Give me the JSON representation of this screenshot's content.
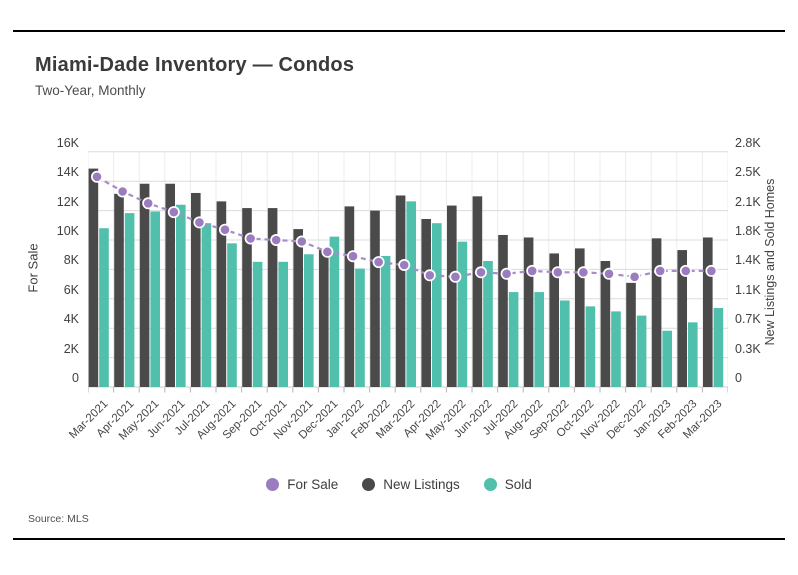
{
  "card": {
    "title": "Miami-Dade Inventory — Condos",
    "subtitle": "Two-Year, Monthly",
    "source": "Source: MLS"
  },
  "chart_data": {
    "type": "bar+line combo",
    "categories": [
      "Mar-2021",
      "Apr-2021",
      "May-2021",
      "Jun-2021",
      "Jul-2021",
      "Aug-2021",
      "Sep-2021",
      "Oct-2021",
      "Nov-2021",
      "Dec-2021",
      "Jan-2022",
      "Feb-2022",
      "Mar-2022",
      "Apr-2022",
      "May-2022",
      "Jun-2022",
      "Jul-2022",
      "Aug-2022",
      "Sep-2022",
      "Oct-2022",
      "Nov-2022",
      "Dec-2022",
      "Jan-2023",
      "Feb-2023",
      "Mar-2023"
    ],
    "series": [
      {
        "name": "For Sale",
        "type": "line",
        "axis": "left",
        "color": "#9b7cbe",
        "line_color": "#a78cc9",
        "values": [
          14300,
          13300,
          12500,
          11900,
          11200,
          10700,
          10100,
          10000,
          9900,
          9200,
          8900,
          8500,
          8300,
          7600,
          7500,
          7800,
          7700,
          7900,
          7800,
          7800,
          7700,
          7500,
          7900,
          7900,
          7900
        ]
      },
      {
        "name": "New Listings",
        "type": "bar",
        "axis": "right",
        "color": "#4a4a4a",
        "values": [
          2600,
          2300,
          2420,
          2420,
          2310,
          2210,
          2130,
          2130,
          1880,
          1630,
          2150,
          2100,
          2280,
          2000,
          2160,
          2270,
          1810,
          1780,
          1590,
          1650,
          1500,
          1240,
          1770,
          1630,
          1780
        ]
      },
      {
        "name": "Sold",
        "type": "bar",
        "axis": "right",
        "color": "#50bfab",
        "values": [
          1890,
          2070,
          2090,
          2170,
          1950,
          1710,
          1490,
          1490,
          1580,
          1790,
          1410,
          1560,
          2210,
          1950,
          1730,
          1500,
          1130,
          1130,
          1030,
          960,
          900,
          850,
          670,
          770,
          940
        ]
      }
    ],
    "left_axis": {
      "title": "For Sale",
      "range": [
        0,
        16000
      ],
      "ticks": [
        "16K",
        "14K",
        "12K",
        "10K",
        "8K",
        "6K",
        "4K",
        "2K",
        "0"
      ]
    },
    "right_axis": {
      "title": "New Listings and Sold Homes",
      "range": [
        0,
        2800
      ],
      "ticks": [
        "2.8K",
        "2.5K",
        "2.1K",
        "1.8K",
        "1.4K",
        "1.1K",
        "0.7K",
        "0.3K",
        "0"
      ]
    },
    "grid": {
      "h_color": "#dcdcdc",
      "v_color": "#ececec",
      "tick_color": "#b5b5b5"
    },
    "legend_position": "bottom-center"
  }
}
